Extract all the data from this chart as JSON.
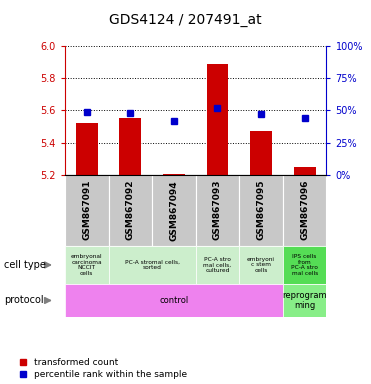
{
  "title": "GDS4124 / 207491_at",
  "samples": [
    "GSM867091",
    "GSM867092",
    "GSM867094",
    "GSM867093",
    "GSM867095",
    "GSM867096"
  ],
  "red_values": [
    5.52,
    5.55,
    5.205,
    5.89,
    5.47,
    5.245
  ],
  "blue_values": [
    5.59,
    5.585,
    5.535,
    5.615,
    5.575,
    5.55
  ],
  "ylim_left": [
    5.2,
    6.0
  ],
  "ylim_right": [
    0,
    100
  ],
  "yticks_left": [
    5.2,
    5.4,
    5.6,
    5.8,
    6.0
  ],
  "yticks_right": [
    0,
    25,
    50,
    75,
    100
  ],
  "cell_types": [
    {
      "label": "embryonal\ncarcinoma\nNCCIT\ncells",
      "span": [
        0,
        1
      ],
      "color": "#cceecc"
    },
    {
      "label": "PC-A stromal cells,\nsorted",
      "span": [
        1,
        3
      ],
      "color": "#cceecc"
    },
    {
      "label": "PC-A stro\nmal cells,\ncultured",
      "span": [
        3,
        4
      ],
      "color": "#cceecc"
    },
    {
      "label": "embryoni\nc stem\ncells",
      "span": [
        4,
        5
      ],
      "color": "#cceecc"
    },
    {
      "label": "IPS cells\nfrom\nPC-A stro\nmal cells",
      "span": [
        5,
        6
      ],
      "color": "#55dd55"
    }
  ],
  "protocols": [
    {
      "label": "control",
      "span": [
        0,
        5
      ],
      "color": "#ee82ee"
    },
    {
      "label": "reprogram\nming",
      "span": [
        5,
        6
      ],
      "color": "#88ee88"
    }
  ],
  "bar_color": "#cc0000",
  "dot_color": "#0000cc",
  "bar_width": 0.5,
  "left_axis_color": "#cc0000",
  "right_axis_color": "#0000cc",
  "sample_box_color": "#c8c8c8"
}
